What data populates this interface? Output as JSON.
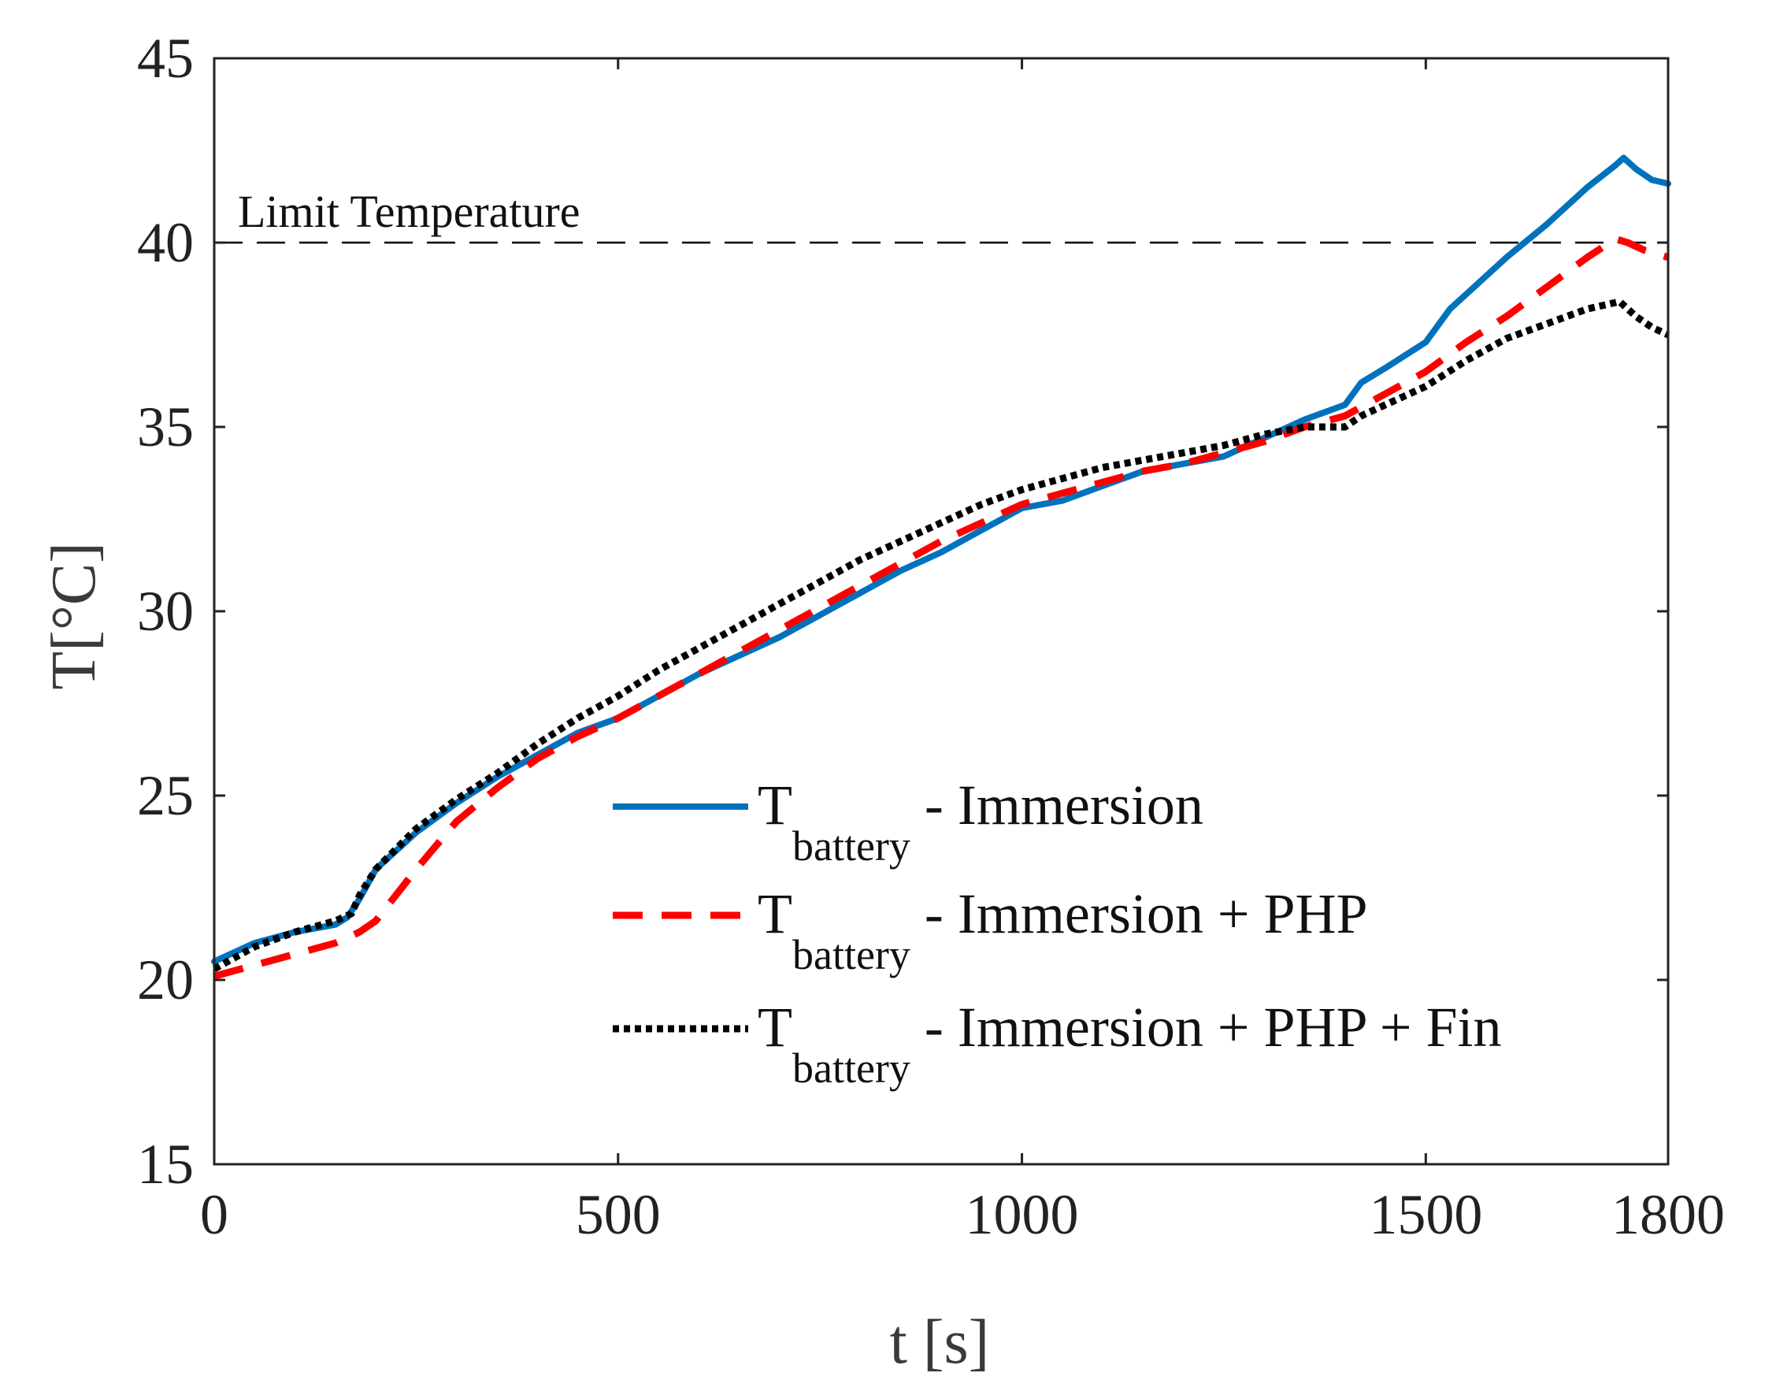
{
  "chart_data": {
    "type": "line",
    "title": "",
    "xlabel": "t [s]",
    "ylabel": "T[°C]",
    "xlim": [
      0,
      1800
    ],
    "ylim": [
      15,
      45
    ],
    "xticks": [
      0,
      500,
      1000,
      1500,
      1800
    ],
    "yticks": [
      15,
      20,
      25,
      30,
      35,
      40,
      45
    ],
    "grid": false,
    "legend_position": "center-right",
    "reference_line": {
      "y": 40,
      "label": "Limit Temperature",
      "style": "dashed",
      "color": "#000000"
    },
    "series": [
      {
        "name": "T_battery - Immersion",
        "legend_main": "T",
        "legend_sub": "battery",
        "legend_rest": " - Immersion",
        "color": "#0072BD",
        "style": "solid",
        "x": [
          0,
          50,
          100,
          150,
          165,
          180,
          200,
          250,
          300,
          350,
          400,
          450,
          500,
          550,
          600,
          650,
          700,
          750,
          800,
          850,
          900,
          950,
          1000,
          1050,
          1100,
          1150,
          1200,
          1250,
          1300,
          1350,
          1400,
          1420,
          1450,
          1500,
          1530,
          1560,
          1600,
          1650,
          1700,
          1735,
          1745,
          1760,
          1780,
          1800
        ],
        "y": [
          20.5,
          21.0,
          21.3,
          21.5,
          21.7,
          22.2,
          23.0,
          24.0,
          24.8,
          25.5,
          26.1,
          26.7,
          27.1,
          27.7,
          28.3,
          28.8,
          29.3,
          29.9,
          30.5,
          31.1,
          31.6,
          32.2,
          32.8,
          33.0,
          33.4,
          33.8,
          34.0,
          34.2,
          34.7,
          35.2,
          35.6,
          36.2,
          36.6,
          37.3,
          38.2,
          38.8,
          39.6,
          40.5,
          41.5,
          42.1,
          42.3,
          42.0,
          41.7,
          41.6
        ]
      },
      {
        "name": "T_battery - Immersion + PHP",
        "legend_main": "T",
        "legend_sub": "battery",
        "legend_rest": " - Immersion + PHP",
        "color": "#FF0000",
        "style": "dashed",
        "x": [
          0,
          50,
          100,
          150,
          180,
          200,
          250,
          300,
          350,
          400,
          450,
          500,
          550,
          600,
          650,
          700,
          750,
          800,
          850,
          900,
          950,
          1000,
          1050,
          1100,
          1150,
          1200,
          1250,
          1300,
          1350,
          1400,
          1450,
          1500,
          1550,
          1600,
          1650,
          1700,
          1735,
          1750,
          1770,
          1800
        ],
        "y": [
          20.1,
          20.4,
          20.7,
          21.0,
          21.3,
          21.6,
          23.0,
          24.3,
          25.2,
          26.0,
          26.6,
          27.1,
          27.7,
          28.3,
          28.9,
          29.5,
          30.1,
          30.7,
          31.3,
          31.9,
          32.4,
          32.9,
          33.2,
          33.5,
          33.8,
          34.0,
          34.3,
          34.6,
          35.0,
          35.3,
          35.9,
          36.5,
          37.3,
          38.0,
          38.8,
          39.6,
          40.1,
          40.0,
          39.8,
          39.6
        ]
      },
      {
        "name": "T_battery - Immersion + PHP + Fin",
        "legend_main": "T",
        "legend_sub": "battery",
        "legend_rest": " - Immersion + PHP + Fin",
        "color": "#000000",
        "style": "dotted",
        "x": [
          0,
          50,
          100,
          150,
          170,
          180,
          200,
          250,
          300,
          350,
          400,
          450,
          500,
          550,
          600,
          650,
          700,
          750,
          800,
          850,
          900,
          950,
          1000,
          1050,
          1100,
          1150,
          1200,
          1250,
          1300,
          1350,
          1400,
          1420,
          1450,
          1500,
          1550,
          1600,
          1650,
          1700,
          1740,
          1760,
          1780,
          1800
        ],
        "y": [
          20.3,
          20.9,
          21.3,
          21.6,
          21.8,
          22.3,
          23.0,
          24.1,
          24.9,
          25.6,
          26.4,
          27.1,
          27.7,
          28.4,
          29.0,
          29.6,
          30.2,
          30.8,
          31.4,
          31.9,
          32.4,
          32.9,
          33.3,
          33.6,
          33.9,
          34.1,
          34.3,
          34.5,
          34.8,
          35.0,
          35.0,
          35.3,
          35.6,
          36.1,
          36.8,
          37.4,
          37.8,
          38.2,
          38.4,
          38.0,
          37.7,
          37.5
        ]
      }
    ]
  }
}
